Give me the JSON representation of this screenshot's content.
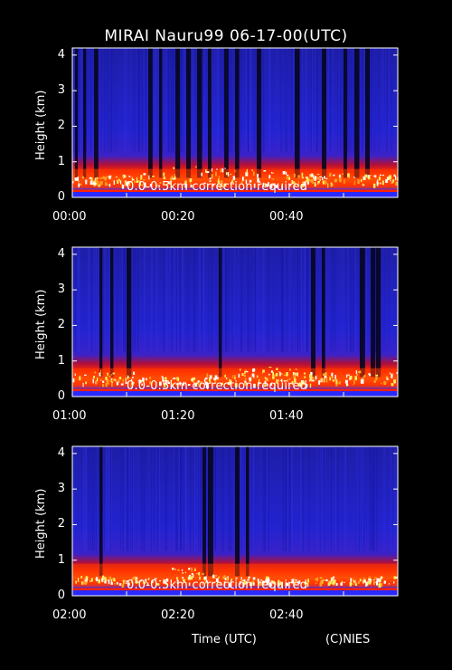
{
  "chart_data": {
    "type": "heatmap",
    "title": "MIRAI Nauru99 06-17-00(UTC)",
    "xlabel": "Time (UTC)",
    "ylabel": "Height (km)",
    "credit": "(C)NIES",
    "ylim": [
      0,
      4.2
    ],
    "yticks": [
      "0",
      "1",
      "2",
      "3",
      "4"
    ],
    "colors": {
      "background": "#000000",
      "signal_low": "#1a1ad8",
      "signal_high": "#ffffff",
      "boundary": "#ff3a00"
    },
    "panels": [
      {
        "xticks": [
          "00:00",
          "00:20",
          "00:40"
        ],
        "xrange_min": [
          0,
          60
        ],
        "note": "0.0-0.5km correction required",
        "boundary_layer_top_km": 0.8,
        "cloud_top_peaks_km": [
          0.6,
          0.65,
          0.7,
          0.9,
          0.85,
          0.8,
          0.75,
          0.7,
          0.7,
          0.65
        ],
        "dark_columns_min": [
          0.5,
          2,
          4,
          14,
          16,
          19,
          21,
          23,
          25,
          28,
          30,
          34,
          41,
          46,
          50,
          52,
          54
        ]
      },
      {
        "xticks": [
          "01:00",
          "01:20",
          "01:40"
        ],
        "xrange_min": [
          60,
          120
        ],
        "note": "0.0-0.5km correction required",
        "boundary_layer_top_km": 0.8,
        "cloud_top_peaks_km": [
          0.75,
          0.7,
          0.6,
          0.55,
          0.65,
          0.8,
          0.85,
          0.7,
          0.75,
          0.7
        ],
        "dark_columns_min": [
          65,
          67,
          70,
          87,
          104,
          106,
          113,
          115,
          116
        ]
      },
      {
        "xticks": [
          "02:00",
          "02:20",
          "02:40"
        ],
        "xrange_min": [
          120,
          180
        ],
        "note": "0.0-0.5km correction required",
        "boundary_layer_top_km": 0.9,
        "cloud_top_peaks_km": [
          0.6,
          0.55,
          0.5,
          0.8,
          0.6,
          0.55,
          0.5,
          0.55,
          0.5,
          0.55
        ],
        "dark_columns_min": [
          125,
          144,
          145,
          150,
          152
        ]
      }
    ]
  }
}
